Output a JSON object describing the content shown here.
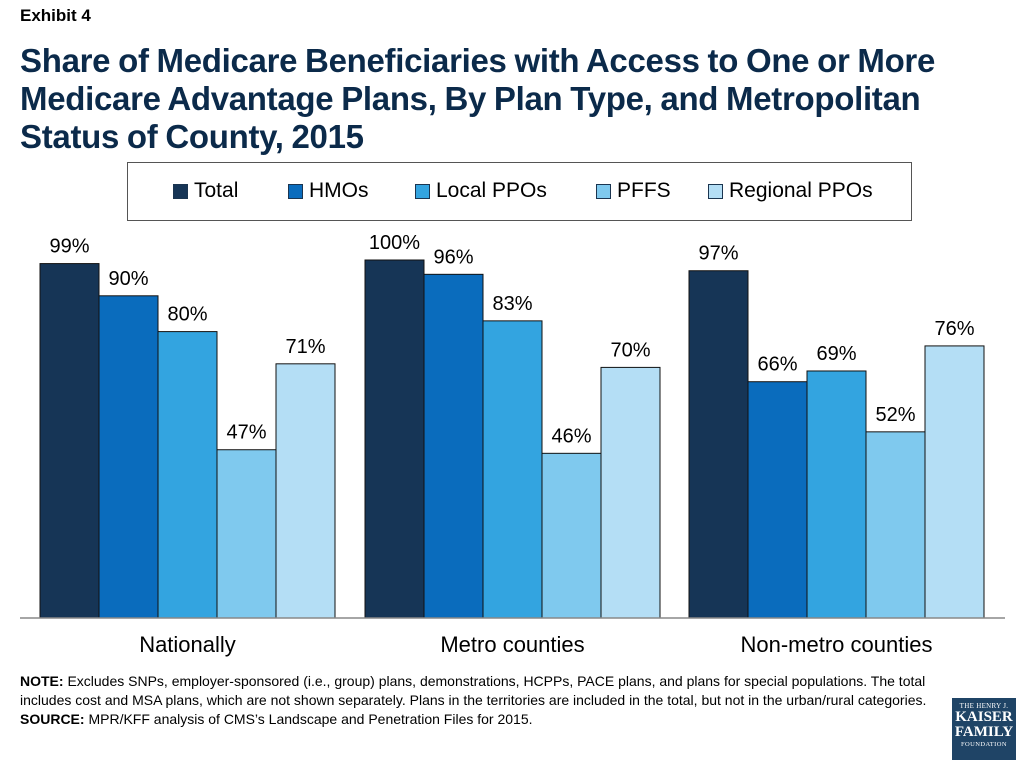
{
  "header": {
    "exhibit": "Exhibit 4",
    "title": "Share of Medicare Beneficiaries with Access to One or More Medicare Advantage Plans, By Plan Type, and Metropolitan Status of County, 2015"
  },
  "colors": {
    "Total": "#163556",
    "HMOs": "#0a6cbd",
    "Local PPOs": "#33a4e0",
    "PFFS": "#7fc9ee",
    "Regional PPOs": "#b4def5"
  },
  "chart_data": {
    "type": "bar",
    "title": "Share of Medicare Beneficiaries with Access to One or More Medicare Advantage Plans, By Plan Type, and Metropolitan Status of County, 2015",
    "categories": [
      "Nationally",
      "Metro counties",
      "Non-metro counties"
    ],
    "series": [
      {
        "name": "Total",
        "values": [
          99,
          100,
          97
        ],
        "labels": [
          "99%",
          "100%",
          "97%"
        ]
      },
      {
        "name": "HMOs",
        "values": [
          90,
          96,
          66
        ],
        "labels": [
          "90%",
          "96%",
          "66%"
        ]
      },
      {
        "name": "Local PPOs",
        "values": [
          80,
          83,
          69
        ],
        "labels": [
          "80%",
          "83%",
          "69%"
        ]
      },
      {
        "name": "PFFS",
        "values": [
          47,
          46,
          52
        ],
        "labels": [
          "47%",
          "46%",
          "52%"
        ]
      },
      {
        "name": "Regional PPOs",
        "values": [
          71,
          70,
          76
        ],
        "labels": [
          "71%",
          "70%",
          "76%"
        ]
      }
    ],
    "ylim": [
      0,
      100
    ],
    "grid": false,
    "legend_position": "top"
  },
  "footer": {
    "note_label": "NOTE:",
    "note_text": " Excludes SNPs, employer-sponsored (i.e., group) plans, demonstrations, HCPPs, PACE plans, and plans for special populations. The total includes cost and MSA plans, which are not shown separately.  Plans in the territories are included in the total, but not in the urban/rural categories.",
    "source_label": "SOURCE:",
    "source_text": "  MPR/KFF analysis of CMS’s Landscape and Penetration Files for 2015."
  },
  "logo": {
    "line1": "THE HENRY J.",
    "line2": "KAISER",
    "line3": "FAMILY",
    "line4": "FOUNDATION"
  }
}
